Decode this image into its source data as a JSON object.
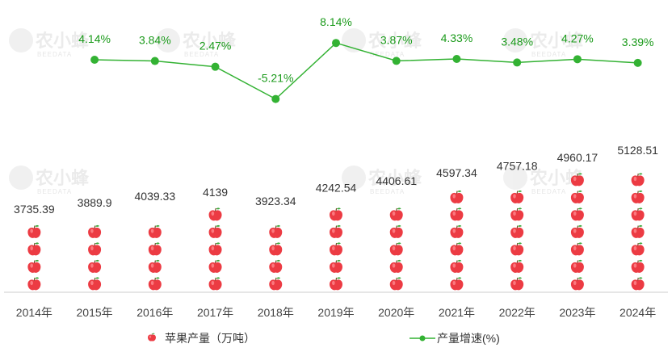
{
  "chart_data": {
    "type": "bar",
    "style": "pictograph-apples-with-line",
    "categories": [
      "2014年",
      "2015年",
      "2016年",
      "2017年",
      "2018年",
      "2019年",
      "2020年",
      "2021年",
      "2022年",
      "2023年",
      "2024年"
    ],
    "series": [
      {
        "name": "苹果产量（万吨）",
        "type": "bar",
        "color": "#e8383d",
        "values": [
          3735.39,
          3889.9,
          4039.33,
          4139,
          3923.34,
          4242.54,
          4406.61,
          4597.34,
          4757.18,
          4960.17,
          5128.51
        ],
        "labels": [
          "3735.39",
          "3889.9",
          "4039.33",
          "4139",
          "3923.34",
          "4242.54",
          "4406.61",
          "4597.34",
          "4757.18",
          "4960.17",
          "5128.51"
        ]
      },
      {
        "name": "产量增速(%)",
        "type": "line",
        "color": "#33b233",
        "values": [
          null,
          4.14,
          3.84,
          2.47,
          -5.21,
          8.14,
          3.87,
          4.33,
          3.48,
          4.27,
          3.39
        ],
        "labels": [
          "",
          "4.14%",
          "3.84%",
          "2.47%",
          "-5.21%",
          "8.14%",
          "3.87%",
          "4.33%",
          "3.48%",
          "4.27%",
          "3.39%"
        ]
      }
    ],
    "legend": [
      "苹果产量（万吨）",
      "产量增速(%)"
    ],
    "legend_position": "bottom",
    "grid": false,
    "title": "",
    "xlabel": "",
    "ylabel": ""
  },
  "watermark": {
    "text": "农小蜂",
    "sub": "BEEDATA"
  },
  "icons": {
    "bar_marker": "apple-icon",
    "line_marker": "dot-icon"
  }
}
